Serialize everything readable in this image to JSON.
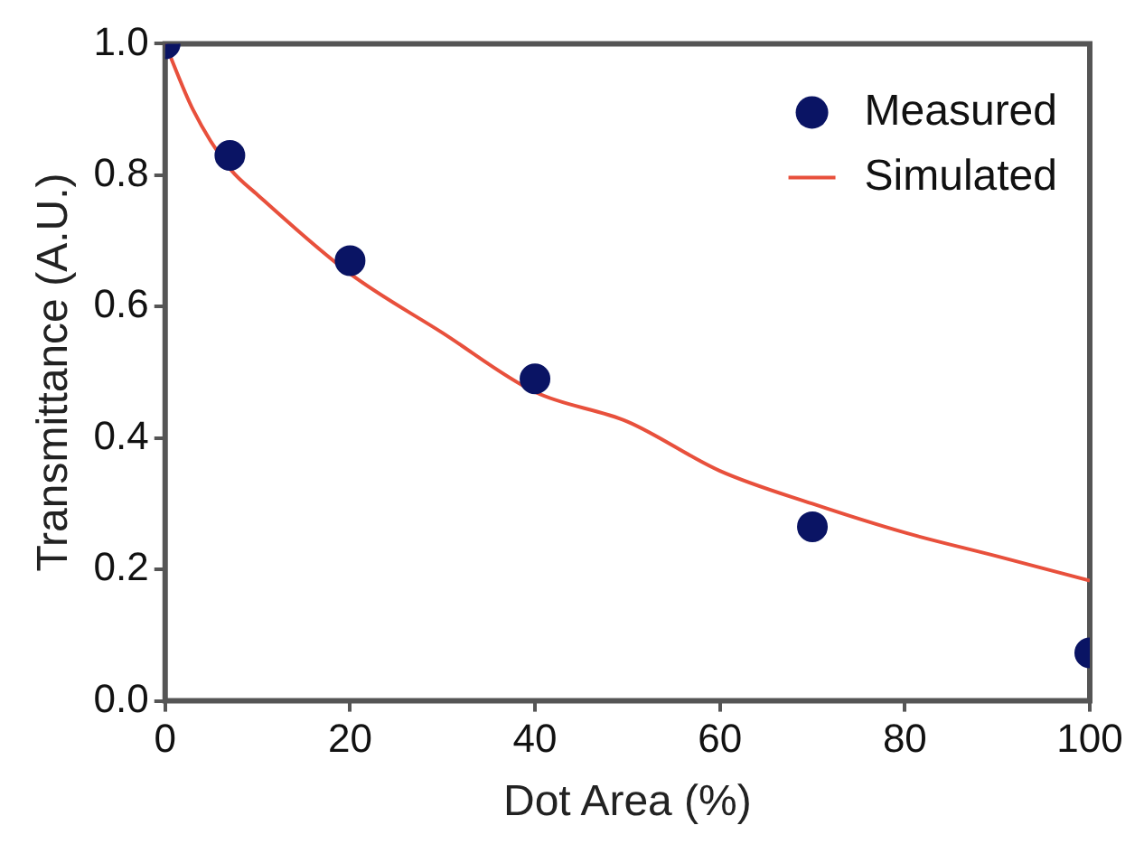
{
  "chart_data": {
    "type": "scatter",
    "xlabel": "Dot Area (%)",
    "ylabel": "Transmittance (A.U.)",
    "xlim": [
      0,
      100
    ],
    "xticks": [
      0,
      20,
      40,
      60,
      80,
      100
    ],
    "ylim": [
      0,
      1
    ],
    "yticks": [
      {
        "value": 0,
        "label": "0.0"
      },
      0.2,
      0.4,
      0.6,
      0.8,
      {
        "value": 1,
        "label": "1.0"
      }
    ],
    "grid": false,
    "legend": "top right",
    "series": [
      {
        "name": "Measured",
        "marker": "circle",
        "color": "#0a1464",
        "x": [
          0,
          7,
          20,
          40,
          70,
          100
        ],
        "values": [
          1.0,
          0.83,
          0.67,
          0.49,
          0.265,
          0.073
        ]
      },
      {
        "name": "Simulated",
        "type": "line",
        "marker": "none",
        "line_style": "solid",
        "color": "#e8503c",
        "x": [
          0,
          3,
          7,
          10,
          20,
          30,
          40,
          50,
          60,
          70,
          80,
          90,
          100
        ],
        "values": [
          1.0,
          0.9,
          0.81,
          0.77,
          0.65,
          0.56,
          0.47,
          0.425,
          0.35,
          0.3,
          0.256,
          0.22,
          0.183
        ]
      }
    ]
  }
}
